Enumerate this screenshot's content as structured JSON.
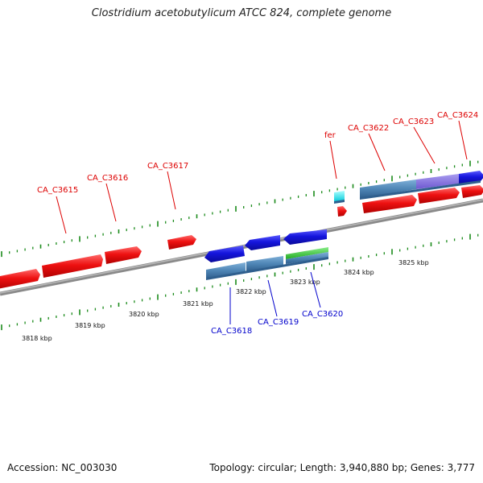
{
  "title": "Clostridium acetobutylicum ATCC 824, complete genome",
  "footer": {
    "accession": "Accession: NC_003030",
    "topology": "Topology: circular; Length: 3,940,880 bp; Genes: 3,777"
  },
  "scale_labels": [
    "3818 kbp",
    "3819 kbp",
    "3820 kbp",
    "3821 kbp",
    "3822 kbp",
    "3823 kbp",
    "3824 kbp",
    "3825 kbp"
  ],
  "gene_labels_forward": [
    "CA_C3615",
    "CA_C3616",
    "CA_C3617",
    "fer",
    "CA_C3622",
    "CA_C3623",
    "CA_C3624"
  ],
  "gene_labels_reverse": [
    "CA_C3618",
    "CA_C3619",
    "CA_C3620"
  ],
  "colors": {
    "forward_gene": "#e01010",
    "reverse_gene": "#1a1ad8",
    "cds_track": "#4f86b6",
    "rna_track": "#33cc33",
    "fer_feature": "#00e5ee",
    "backbone": "#7a7a7a",
    "tick": "#1a8a1a"
  }
}
